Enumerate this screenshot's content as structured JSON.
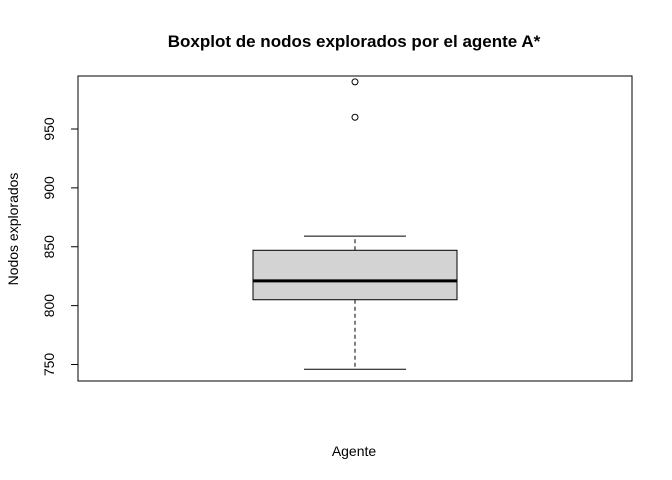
{
  "chart_data": {
    "type": "boxplot",
    "title": "Boxplot de nodos explorados por el agente A*",
    "xlabel": "Agente",
    "ylabel": "Nodos explorados",
    "ylim": [
      736,
      995
    ],
    "yticks": [
      750,
      800,
      850,
      900,
      950
    ],
    "tick_labels": [
      "750",
      "800",
      "850",
      "900",
      "950"
    ],
    "box": {
      "whisker_low": 746,
      "q1": 805,
      "median": 821,
      "q3": 847,
      "whisker_high": 859,
      "outliers": [
        960,
        990
      ]
    },
    "colors": {
      "box_fill": "#d3d3d3",
      "stroke": "#000000"
    },
    "grid": false
  }
}
